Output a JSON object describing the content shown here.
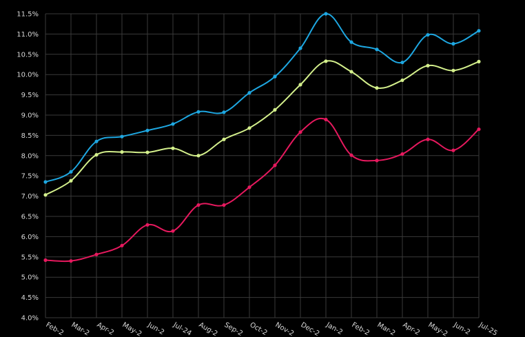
{
  "chart_data": {
    "type": "line",
    "title": "",
    "xlabel": "",
    "ylabel": "",
    "ylim": [
      4.0,
      11.5
    ],
    "y_ticks": [
      "4.0%",
      "4.5%",
      "5.0%",
      "5.5%",
      "6.0%",
      "6.5%",
      "7.0%",
      "7.5%",
      "8.0%",
      "8.5%",
      "9.0%",
      "9.5%",
      "10.0%",
      "10.5%",
      "11.0%",
      "11.5%"
    ],
    "categories": [
      "Feb-2",
      "Mar-2",
      "Apr-2",
      "May-2",
      "Jun-2",
      "Jul-24",
      "Aug-2",
      "Sep-2",
      "Oct-2",
      "Nov-2",
      "Dec-2",
      "Jan-2",
      "Feb-2",
      "Mar-2",
      "Apr-2",
      "May-2",
      "Jun-2",
      "Jul-25"
    ],
    "grid": true,
    "smooth": true,
    "series": [
      {
        "color": "#1ea7e1",
        "values": [
          7.35,
          7.6,
          8.35,
          8.47,
          8.62,
          8.78,
          9.08,
          9.07,
          9.55,
          9.95,
          10.65,
          11.5,
          10.8,
          10.62,
          10.3,
          10.98,
          10.76,
          11.08
        ]
      },
      {
        "color": "#d4f08c",
        "values": [
          7.03,
          7.38,
          8.02,
          8.09,
          8.08,
          8.18,
          8.0,
          8.4,
          8.68,
          9.13,
          9.75,
          10.33,
          10.07,
          9.67,
          9.86,
          10.22,
          10.1,
          10.32
        ]
      },
      {
        "color": "#e6195e",
        "values": [
          5.42,
          5.4,
          5.56,
          5.78,
          6.29,
          6.14,
          6.78,
          6.78,
          7.22,
          7.76,
          8.58,
          8.89,
          8.01,
          7.88,
          8.04,
          8.4,
          8.13,
          8.65
        ]
      }
    ]
  }
}
